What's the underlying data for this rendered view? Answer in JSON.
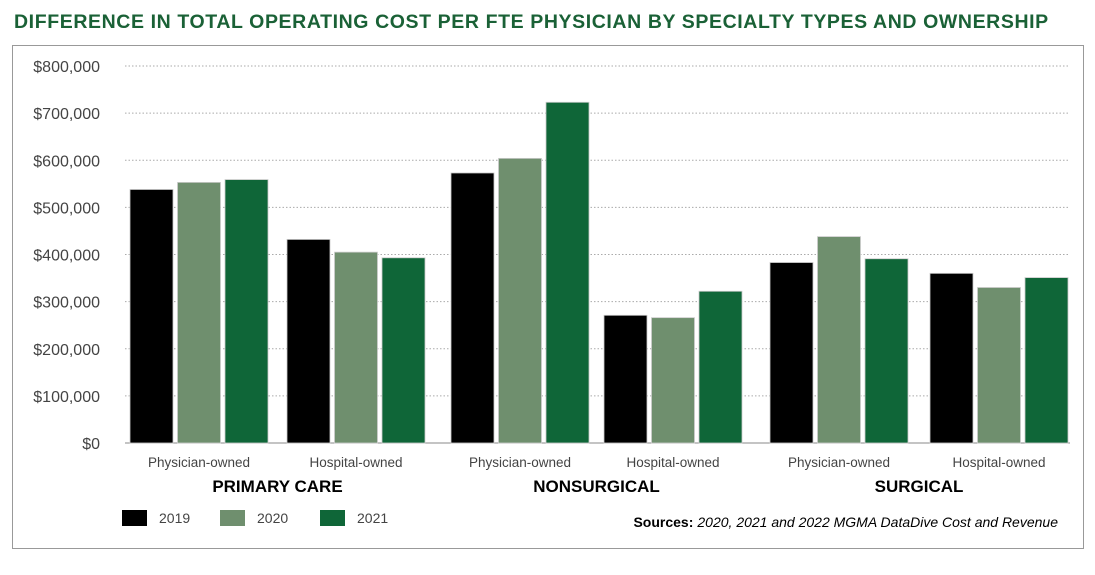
{
  "chart_data": {
    "type": "bar",
    "title": "DIFFERENCE IN TOTAL OPERATING COST PER FTE PHYSICIAN BY SPECIALTY TYPES AND OWNERSHIP",
    "categories": [
      "Physician-owned",
      "Hospital-owned",
      "Physician-owned",
      "Hospital-owned",
      "Physician-owned",
      "Hospital-owned"
    ],
    "groups": [
      "PRIMARY CARE",
      "NONSURGICAL",
      "SURGICAL"
    ],
    "series": [
      {
        "name": "2019",
        "color": "#000000",
        "values": [
          538000,
          432000,
          573000,
          271000,
          383000,
          360000
        ]
      },
      {
        "name": "2020",
        "color": "#6f8f6e",
        "values": [
          553000,
          405000,
          604000,
          266000,
          438000,
          330000
        ]
      },
      {
        "name": "2021",
        "color": "#0f6638",
        "values": [
          559000,
          393000,
          723000,
          322000,
          391000,
          351000
        ]
      }
    ],
    "ylim": [
      0,
      800000
    ],
    "yticks": [
      "$0",
      "$100,000",
      "$200,000",
      "$300,000",
      "$400,000",
      "$500,000",
      "$600,000",
      "$700,000",
      "$800,000"
    ],
    "grid": true,
    "legend_placement": "bottom-left",
    "source_label": "Sources:",
    "source_text": "2020, 2021 and 2022 MGMA DataDive Cost and Revenue",
    "title_color": "#1a6136"
  }
}
